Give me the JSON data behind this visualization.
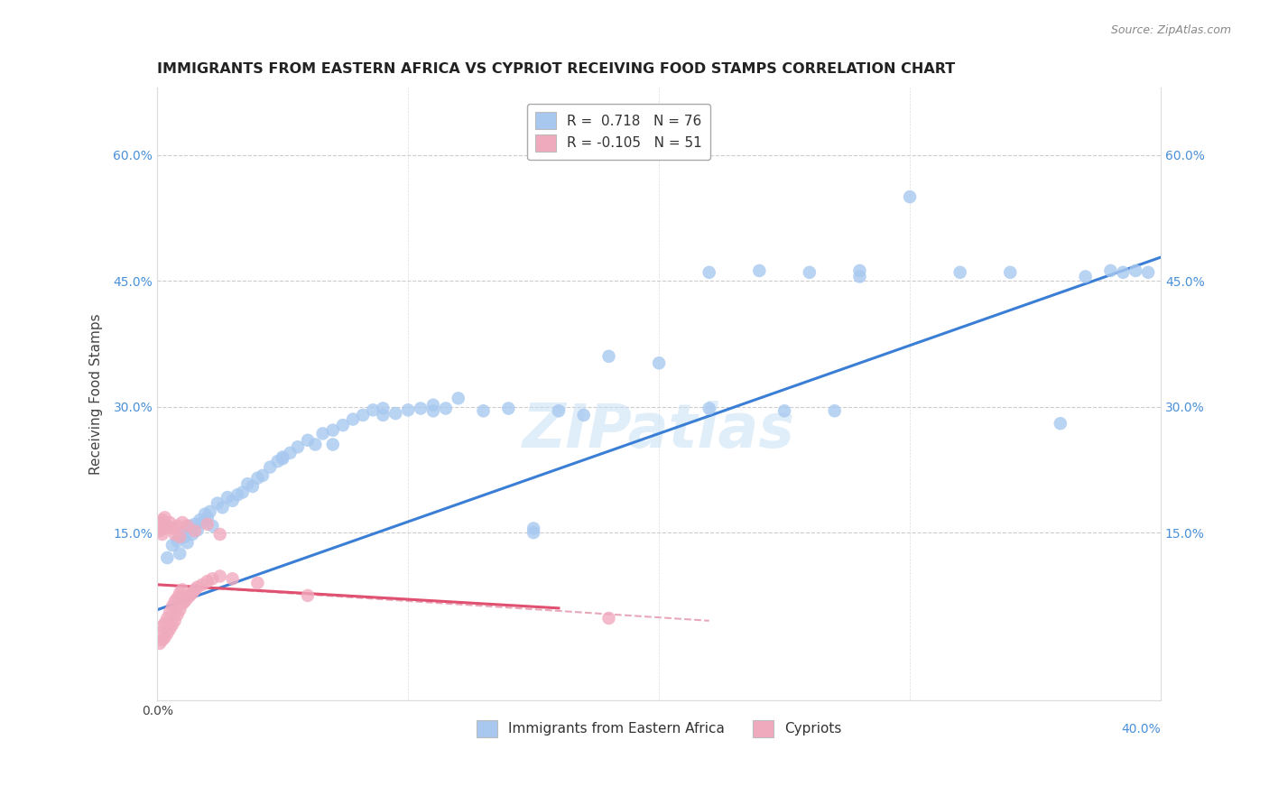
{
  "title": "IMMIGRANTS FROM EASTERN AFRICA VS CYPRIOT RECEIVING FOOD STAMPS CORRELATION CHART",
  "source": "Source: ZipAtlas.com",
  "ylabel": "Receiving Food Stamps",
  "xlim": [
    0.0,
    0.4
  ],
  "ylim": [
    -0.05,
    0.68
  ],
  "yticks": [
    0.15,
    0.3,
    0.45,
    0.6
  ],
  "ytick_labels": [
    "15.0%",
    "30.0%",
    "45.0%",
    "60.0%"
  ],
  "xtick_left": "0.0%",
  "xtick_right": "40.0%",
  "blue_color": "#a8c8ef",
  "pink_color": "#f0aabe",
  "blue_line_color": "#3a7fd5",
  "pink_line_color": "#e05070",
  "pink_dashed_color": "#e8a8ba",
  "watermark": "ZIPatlas",
  "legend_blue_label": "R =  0.718   N = 76",
  "legend_pink_label": "R = -0.105   N = 51",
  "bottom_label_blue": "Immigrants from Eastern Africa",
  "bottom_label_pink": "Cypriots",
  "blue_scatter_x": [
    0.004,
    0.006,
    0.008,
    0.009,
    0.01,
    0.011,
    0.012,
    0.013,
    0.014,
    0.015,
    0.016,
    0.017,
    0.018,
    0.019,
    0.02,
    0.021,
    0.022,
    0.024,
    0.026,
    0.028,
    0.03,
    0.032,
    0.034,
    0.036,
    0.038,
    0.04,
    0.042,
    0.045,
    0.048,
    0.05,
    0.053,
    0.056,
    0.06,
    0.063,
    0.066,
    0.07,
    0.074,
    0.078,
    0.082,
    0.086,
    0.09,
    0.095,
    0.1,
    0.105,
    0.11,
    0.115,
    0.12,
    0.13,
    0.14,
    0.15,
    0.16,
    0.17,
    0.18,
    0.2,
    0.22,
    0.24,
    0.26,
    0.27,
    0.28,
    0.3,
    0.05,
    0.07,
    0.09,
    0.11,
    0.15,
    0.22,
    0.25,
    0.28,
    0.32,
    0.34,
    0.36,
    0.37,
    0.38,
    0.385,
    0.39,
    0.395
  ],
  "blue_scatter_y": [
    0.12,
    0.135,
    0.14,
    0.125,
    0.15,
    0.145,
    0.138,
    0.158,
    0.148,
    0.16,
    0.153,
    0.165,
    0.162,
    0.172,
    0.168,
    0.175,
    0.158,
    0.185,
    0.18,
    0.192,
    0.188,
    0.195,
    0.198,
    0.208,
    0.205,
    0.215,
    0.218,
    0.228,
    0.235,
    0.238,
    0.245,
    0.252,
    0.26,
    0.255,
    0.268,
    0.272,
    0.278,
    0.285,
    0.29,
    0.296,
    0.298,
    0.292,
    0.296,
    0.298,
    0.302,
    0.298,
    0.31,
    0.295,
    0.298,
    0.15,
    0.295,
    0.29,
    0.36,
    0.352,
    0.298,
    0.462,
    0.46,
    0.295,
    0.462,
    0.55,
    0.24,
    0.255,
    0.29,
    0.295,
    0.155,
    0.46,
    0.295,
    0.455,
    0.46,
    0.46,
    0.28,
    0.455,
    0.462,
    0.46,
    0.462,
    0.46
  ],
  "pink_scatter_x": [
    0.001,
    0.001,
    0.002,
    0.002,
    0.003,
    0.003,
    0.004,
    0.004,
    0.005,
    0.005,
    0.006,
    0.006,
    0.007,
    0.007,
    0.008,
    0.008,
    0.009,
    0.009,
    0.01,
    0.01,
    0.011,
    0.012,
    0.013,
    0.014,
    0.015,
    0.016,
    0.018,
    0.02,
    0.022,
    0.025,
    0.001,
    0.001,
    0.002,
    0.002,
    0.003,
    0.003,
    0.004,
    0.005,
    0.006,
    0.007,
    0.008,
    0.009,
    0.01,
    0.012,
    0.015,
    0.02,
    0.025,
    0.03,
    0.04,
    0.06,
    0.18
  ],
  "pink_scatter_y": [
    0.018,
    0.03,
    0.022,
    0.038,
    0.025,
    0.042,
    0.03,
    0.048,
    0.035,
    0.055,
    0.04,
    0.062,
    0.045,
    0.068,
    0.052,
    0.072,
    0.058,
    0.078,
    0.065,
    0.082,
    0.068,
    0.072,
    0.075,
    0.078,
    0.082,
    0.085,
    0.088,
    0.092,
    0.095,
    0.098,
    0.152,
    0.162,
    0.148,
    0.165,
    0.155,
    0.168,
    0.158,
    0.162,
    0.155,
    0.148,
    0.158,
    0.145,
    0.162,
    0.158,
    0.152,
    0.16,
    0.148,
    0.095,
    0.09,
    0.075,
    0.048
  ],
  "blue_line_x": [
    0.0,
    0.4
  ],
  "blue_line_y": [
    0.058,
    0.478
  ],
  "pink_solid_line_x": [
    0.0,
    0.16
  ],
  "pink_solid_line_y": [
    0.088,
    0.06
  ],
  "pink_dashed_line_x": [
    0.0,
    0.22
  ],
  "pink_dashed_line_y": [
    0.088,
    0.045
  ]
}
